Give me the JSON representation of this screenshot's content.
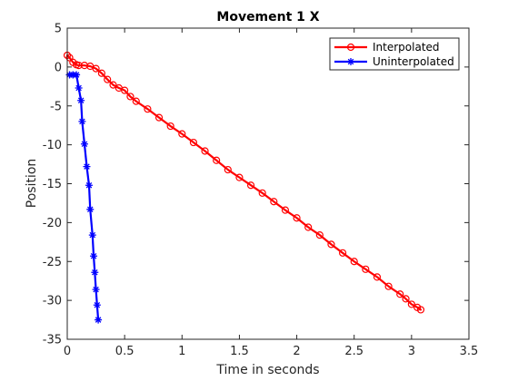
{
  "chart_data": {
    "type": "line",
    "title": "Movement 1 X",
    "xlabel": "Time in seconds",
    "ylabel": "Position",
    "xlim": [
      0,
      3.5
    ],
    "ylim": [
      -35,
      5
    ],
    "xticks": [
      0,
      0.5,
      1,
      1.5,
      2,
      2.5,
      3,
      3.5
    ],
    "xtick_labels": [
      "0",
      "0.5",
      "1",
      "1.5",
      "2",
      "2.5",
      "3",
      "3.5"
    ],
    "yticks": [
      -35,
      -30,
      -25,
      -20,
      -15,
      -10,
      -5,
      0,
      5
    ],
    "ytick_labels": [
      "-35",
      "-30",
      "-25",
      "-20",
      "-15",
      "-10",
      "-5",
      "0",
      "5"
    ],
    "grid": false,
    "legend_position": "top-right",
    "series": [
      {
        "name": "Interpolated",
        "color": "#ff0000",
        "marker": "circle",
        "x": [
          0,
          0.02,
          0.05,
          0.08,
          0.1,
          0.15,
          0.2,
          0.25,
          0.3,
          0.35,
          0.4,
          0.45,
          0.5,
          0.55,
          0.6,
          0.7,
          0.8,
          0.9,
          1.0,
          1.1,
          1.2,
          1.3,
          1.4,
          1.5,
          1.6,
          1.7,
          1.8,
          1.9,
          2.0,
          2.1,
          2.2,
          2.3,
          2.4,
          2.5,
          2.6,
          2.7,
          2.8,
          2.9,
          2.95,
          3.0,
          3.05,
          3.08
        ],
        "y": [
          1.5,
          1.2,
          0.6,
          0.3,
          0.2,
          0.2,
          0.1,
          -0.2,
          -0.8,
          -1.6,
          -2.3,
          -2.7,
          -3.0,
          -3.8,
          -4.4,
          -5.4,
          -6.5,
          -7.6,
          -8.6,
          -9.7,
          -10.8,
          -12.0,
          -13.2,
          -14.2,
          -15.2,
          -16.2,
          -17.3,
          -18.4,
          -19.4,
          -20.6,
          -21.6,
          -22.8,
          -23.9,
          -25.0,
          -26.0,
          -27.0,
          -28.2,
          -29.2,
          -29.8,
          -30.5,
          -30.9,
          -31.2
        ]
      },
      {
        "name": "Uninterpolated",
        "color": "#0000ff",
        "marker": "asterisk",
        "x": [
          0.02,
          0.05,
          0.08,
          0.1,
          0.12,
          0.13,
          0.15,
          0.17,
          0.19,
          0.2,
          0.22,
          0.23,
          0.24,
          0.25,
          0.26,
          0.27
        ],
        "y": [
          -1.0,
          -1.0,
          -1.0,
          -2.7,
          -4.3,
          -7.0,
          -9.9,
          -12.8,
          -15.2,
          -18.3,
          -21.6,
          -24.3,
          -26.4,
          -28.6,
          -30.6,
          -32.5
        ]
      }
    ]
  }
}
